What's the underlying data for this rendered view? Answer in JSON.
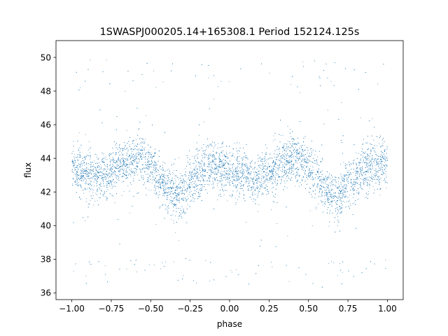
{
  "chart_data": {
    "type": "scatter",
    "title": "1SWASPJ000205.14+165308.1 Period 152124.125s",
    "xlabel": "phase",
    "ylabel": "flux",
    "xlim": [
      -1.1,
      1.1
    ],
    "ylim": [
      35.6,
      51.0
    ],
    "xticks": [
      -1.0,
      -0.75,
      -0.5,
      -0.25,
      0.0,
      0.25,
      0.5,
      0.75,
      1.0
    ],
    "xtick_labels": [
      "−1.00",
      "−0.75",
      "−0.50",
      "−0.25",
      "0.00",
      "0.25",
      "0.50",
      "0.75",
      "1.00"
    ],
    "yticks": [
      36,
      38,
      40,
      42,
      44,
      46,
      48,
      50
    ],
    "ytick_labels": [
      "36",
      "38",
      "40",
      "42",
      "44",
      "46",
      "48",
      "50"
    ],
    "grid": false,
    "legend": "none",
    "marker_color": "#1f77b4",
    "series": [
      {
        "x": [
          -1.0,
          -0.95,
          -0.9,
          -0.85,
          -0.8,
          -0.75,
          -0.7,
          -0.65,
          -0.6,
          -0.55,
          -0.5,
          -0.45,
          -0.4,
          -0.35,
          -0.3,
          -0.25,
          -0.2,
          -0.15,
          -0.1,
          -0.05,
          0.0,
          0.05,
          0.1,
          0.15,
          0.2,
          0.25,
          0.3,
          0.35,
          0.4,
          0.45,
          0.5,
          0.55,
          0.6,
          0.65,
          0.7,
          0.75,
          0.8,
          0.85,
          0.9,
          0.95,
          1.0
        ],
        "y": [
          43.8,
          43.2,
          42.9,
          43.0,
          42.9,
          43.2,
          43.6,
          43.8,
          43.9,
          44.0,
          43.5,
          42.8,
          42.2,
          41.8,
          41.7,
          42.6,
          43.0,
          43.4,
          43.6,
          43.4,
          43.2,
          43.0,
          42.9,
          42.8,
          42.9,
          43.2,
          43.6,
          43.8,
          43.9,
          44.0,
          43.5,
          42.8,
          42.2,
          41.8,
          41.7,
          42.6,
          43.0,
          43.4,
          43.6,
          43.4,
          43.8
        ]
      }
    ]
  }
}
